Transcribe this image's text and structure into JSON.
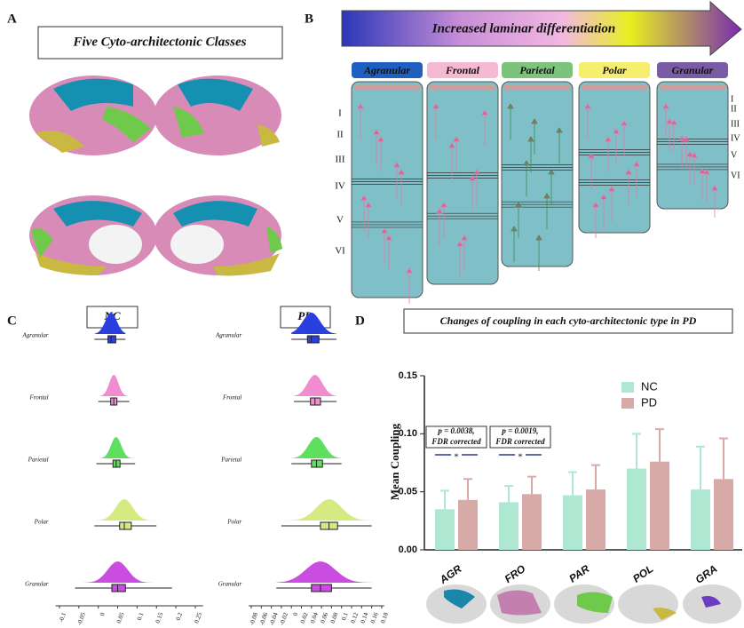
{
  "panel_a": {
    "letter": "A",
    "title": "Five Cyto-architectonic Classes"
  },
  "panel_b": {
    "letter": "B",
    "arrow_label": "Increased laminar differentiation",
    "classes": [
      "Agranular",
      "Frontal",
      "Parietal",
      "Polar",
      "Granular"
    ],
    "class_colors": [
      "#1f5fbf",
      "#f5b9d2",
      "#7cc47c",
      "#f6ee6e",
      "#7a5ca6"
    ],
    "layers": [
      "I",
      "II",
      "III",
      "IV",
      "V",
      "VI"
    ]
  },
  "panel_c": {
    "letter": "C"
  },
  "panel_d": {
    "letter": "D"
  },
  "chart_data": [
    {
      "type": "raincloud",
      "title": "NC",
      "categories": [
        "Agranular",
        "Frontal",
        "Parietal",
        "Polar",
        "Granular"
      ],
      "colors": [
        "#2a3fe0",
        "#f08ccf",
        "#5ee05e",
        "#d6ea82",
        "#c94de0"
      ],
      "boxes": [
        {
          "min": -0.01,
          "q1": 0.025,
          "median": 0.033,
          "q3": 0.045,
          "max": 0.07
        },
        {
          "min": 0.0,
          "q1": 0.032,
          "median": 0.04,
          "q3": 0.048,
          "max": 0.08
        },
        {
          "min": -0.005,
          "q1": 0.038,
          "median": 0.046,
          "q3": 0.056,
          "max": 0.095
        },
        {
          "min": -0.01,
          "q1": 0.055,
          "median": 0.067,
          "q3": 0.085,
          "max": 0.15
        },
        {
          "min": -0.06,
          "q1": 0.035,
          "median": 0.05,
          "q3": 0.07,
          "max": 0.19
        }
      ],
      "xlim": [
        -0.11,
        0.27
      ],
      "xticks": [
        -0.1,
        -0.05,
        0,
        0.05,
        0.1,
        0.15,
        0.2,
        0.25
      ]
    },
    {
      "type": "raincloud",
      "title": "PD",
      "categories": [
        "Agranular",
        "Frontal",
        "Parietal",
        "Polar",
        "Granular"
      ],
      "colors": [
        "#2a3fe0",
        "#f08ccf",
        "#5ee05e",
        "#d6ea82",
        "#c94de0"
      ],
      "boxes": [
        {
          "min": 0.0,
          "q1": 0.032,
          "median": 0.04,
          "q3": 0.055,
          "max": 0.09
        },
        {
          "min": 0.005,
          "q1": 0.038,
          "median": 0.047,
          "q3": 0.058,
          "max": 0.09
        },
        {
          "min": 0.0,
          "q1": 0.04,
          "median": 0.05,
          "q3": 0.062,
          "max": 0.1
        },
        {
          "min": -0.02,
          "q1": 0.058,
          "median": 0.075,
          "q3": 0.092,
          "max": 0.16
        },
        {
          "min": -0.03,
          "q1": 0.04,
          "median": 0.058,
          "q3": 0.08,
          "max": 0.16
        }
      ],
      "xlim": [
        -0.085,
        0.185
      ],
      "xticks": [
        -0.08,
        -0.06,
        -0.04,
        -0.02,
        0,
        0.02,
        0.04,
        0.06,
        0.08,
        0.1,
        0.12,
        0.14,
        0.16,
        0.18
      ]
    },
    {
      "type": "bar",
      "title": "Changes of coupling in each cyto-architectonic type in PD",
      "ylabel": "Mean Coupling",
      "categories": [
        "AGR",
        "FRO",
        "PAR",
        "POL",
        "GRA"
      ],
      "series": [
        {
          "name": "NC",
          "color": "#aee8d2",
          "values": [
            0.035,
            0.041,
            0.047,
            0.07,
            0.052
          ],
          "errors": [
            0.016,
            0.014,
            0.02,
            0.03,
            0.037
          ]
        },
        {
          "name": "PD",
          "color": "#d8aaa7",
          "values": [
            0.043,
            0.048,
            0.052,
            0.076,
            0.061
          ],
          "errors": [
            0.018,
            0.015,
            0.021,
            0.028,
            0.035
          ]
        }
      ],
      "ylim": [
        0,
        0.15
      ],
      "yticks": [
        {
          "value": 0,
          "label": "0.00"
        },
        0.05,
        {
          "value": 0.1,
          "label": "0.10"
        },
        0.15
      ],
      "legend": "upper right",
      "annotations": [
        {
          "category": 0,
          "text": [
            "p = 0.0038,",
            "FDR corrected"
          ],
          "marker": "*"
        },
        {
          "category": 1,
          "text": [
            "p = 0.0019,",
            "FDR corrected"
          ],
          "marker": "*"
        }
      ]
    }
  ]
}
